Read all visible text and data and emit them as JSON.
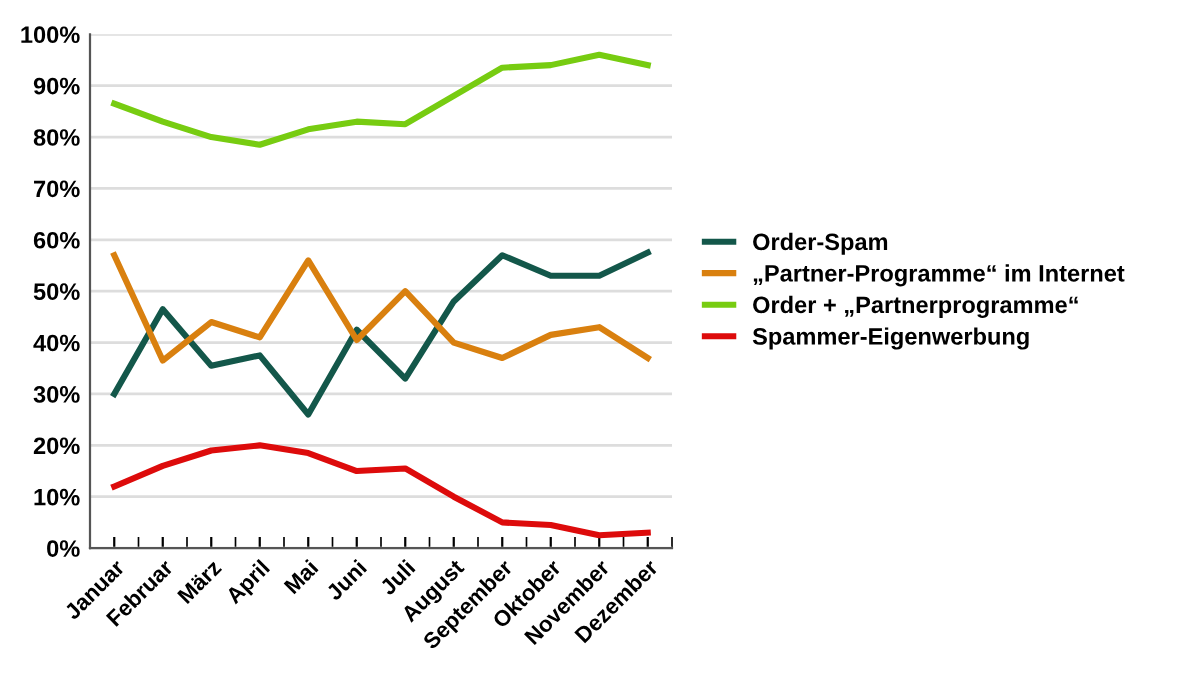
{
  "chart_data": {
    "type": "line",
    "categories": [
      "Januar",
      "Februar",
      "März",
      "April",
      "Mai",
      "Juni",
      "Juli",
      "August",
      "September",
      "Oktober",
      "November",
      "Dezember"
    ],
    "series": [
      {
        "name": "Order-Spam",
        "color": "#13574a",
        "values": [
          30,
          46.5,
          35.5,
          37.5,
          26,
          42.5,
          33,
          48,
          57,
          53,
          53,
          57.5
        ]
      },
      {
        "name": "„Partner-Programme“ im Internet",
        "color": "#d9800f",
        "values": [
          57,
          36.5,
          44,
          41,
          56,
          40.5,
          50,
          40,
          37,
          41.5,
          43,
          37
        ]
      },
      {
        "name": "Order + „Partnerprogramme“",
        "color": "#77cc11",
        "values": [
          86.5,
          83,
          80,
          78.5,
          81.5,
          83,
          82.5,
          88,
          93.5,
          94,
          96,
          94
        ]
      },
      {
        "name": "Spammer-Eigenwerbung",
        "color": "#dd0b0b",
        "values": [
          12,
          16,
          19,
          20,
          18.5,
          15,
          15.5,
          10,
          5,
          4.5,
          2.5,
          3
        ]
      }
    ],
    "ylim": [
      0,
      100
    ],
    "yticks": [
      {
        "value": 0,
        "label": "0%"
      },
      {
        "value": 10,
        "label": "10%"
      },
      {
        "value": 20,
        "label": "20%"
      },
      {
        "value": 30,
        "label": "30%"
      },
      {
        "value": 40,
        "label": "40%"
      },
      {
        "value": 50,
        "label": "50%"
      },
      {
        "value": 60,
        "label": "60%"
      },
      {
        "value": 70,
        "label": "70%"
      },
      {
        "value": 80,
        "label": "80%"
      },
      {
        "value": 90,
        "label": "90%"
      },
      {
        "value": 100,
        "label": "100%"
      }
    ],
    "grid": "y",
    "legend": "right",
    "marker": "none",
    "line_style": "solid"
  }
}
